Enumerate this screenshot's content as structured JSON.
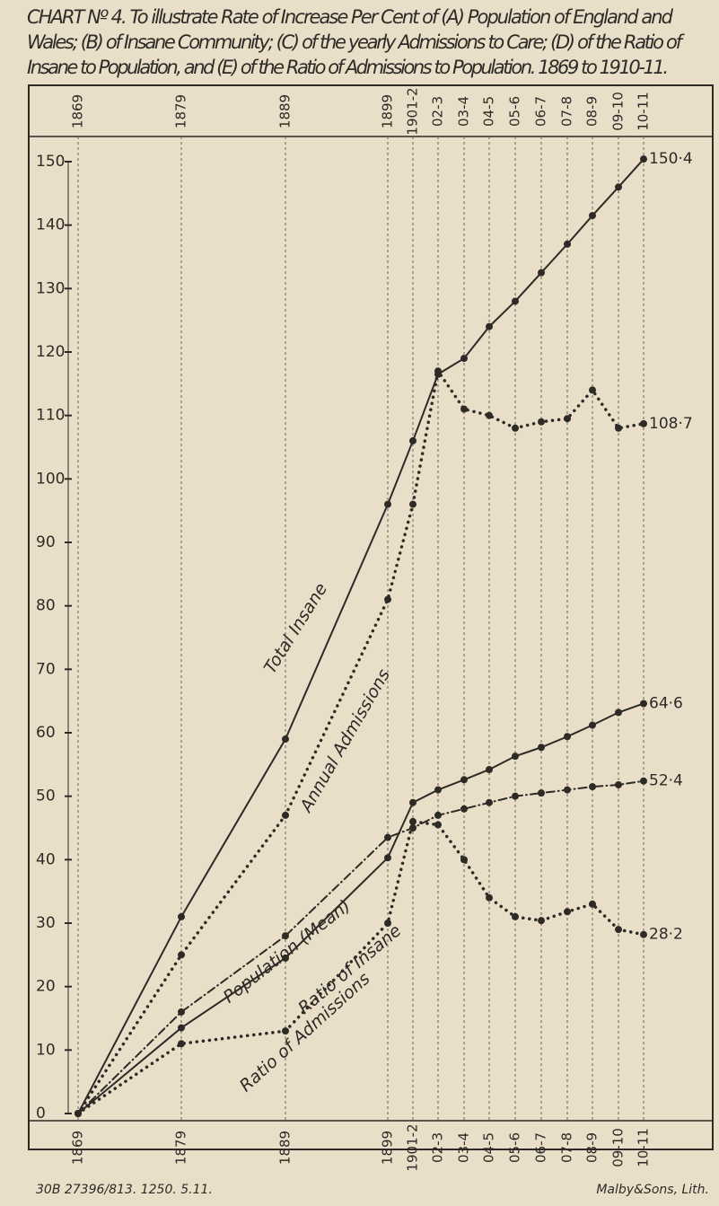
{
  "chart_data": {
    "type": "line",
    "title_lines": [
      "CHART Nº 4. To illustrate Rate of Increase Per Cent of (A) Population of England and",
      "Wales; (B) of Insane Community; (C) of the yearly Admissions to Care; (D) of the Ratio of",
      "Insane to Population, and (E) of the Ratio of Admissions to Population. 1869 to 1910-11."
    ],
    "categories": [
      "1869",
      "1879",
      "1889",
      "1899",
      "1901-2",
      "02-3",
      "03-4",
      "04-5",
      "05-6",
      "06-7",
      "07-8",
      "08-9",
      "09-10",
      "10-11"
    ],
    "ylim": [
      0,
      150
    ],
    "yticks": [
      0,
      10,
      20,
      30,
      40,
      50,
      60,
      70,
      80,
      90,
      100,
      110,
      120,
      130,
      140,
      150
    ],
    "series": [
      {
        "name": "Total Insane",
        "color": "#2e2a26",
        "style": "solid",
        "values": [
          0,
          31,
          59,
          96,
          106,
          116.5,
          119,
          124,
          128,
          132.5,
          137,
          141.5,
          146,
          150.4
        ],
        "value_labels": [
          null,
          null,
          null,
          null,
          null,
          null,
          null,
          null,
          null,
          null,
          null,
          null,
          null,
          "150·4"
        ]
      },
      {
        "name": "Annual Admissions",
        "color": "#2e2a26",
        "style": "dotted",
        "values": [
          0,
          25,
          47,
          81,
          96,
          117,
          111,
          110,
          108,
          109,
          109.5,
          114,
          108,
          108.7
        ],
        "value_labels": [
          null,
          null,
          null,
          null,
          null,
          null,
          null,
          null,
          null,
          null,
          null,
          null,
          null,
          "108·7"
        ]
      },
      {
        "name": "Population (Mean)",
        "color": "#2e2a26",
        "style": "solid",
        "values": [
          0,
          13.5,
          24.5,
          40.3,
          49,
          51,
          52.6,
          54.2,
          56.3,
          57.7,
          59.4,
          61.2,
          63.2,
          64.6
        ],
        "value_labels": [
          null,
          null,
          null,
          null,
          null,
          null,
          null,
          null,
          null,
          null,
          null,
          null,
          null,
          "64·6"
        ]
      },
      {
        "name": "Ratio of Insane",
        "color": "#2e2a26",
        "style": "dashdot",
        "values": [
          0,
          16,
          28,
          43.5,
          45,
          47,
          48,
          49,
          50,
          50.5,
          51,
          51.5,
          51.8,
          52.4
        ],
        "value_labels": [
          null,
          null,
          null,
          null,
          null,
          null,
          null,
          null,
          null,
          null,
          null,
          null,
          null,
          "52·4"
        ]
      },
      {
        "name": "Ratio of Admissions",
        "color": "#2e2a26",
        "style": "dotted",
        "values": [
          0,
          11,
          13,
          30,
          46,
          45.5,
          40,
          34,
          31,
          30.4,
          31.8,
          33,
          29,
          28.2
        ],
        "value_labels": [
          null,
          null,
          null,
          null,
          null,
          null,
          null,
          null,
          null,
          null,
          null,
          null,
          null,
          "28·2"
        ]
      }
    ],
    "footer_left": "30B 27396/813. 1250. 5.11.",
    "footer_right": "Malby&Sons, Lith."
  }
}
